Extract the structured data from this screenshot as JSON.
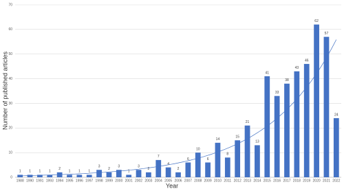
{
  "chart_data": {
    "type": "bar",
    "x_label": "Year",
    "y_label": "Number of published articles",
    "categories": [
      "1988",
      "1990",
      "1991",
      "1993",
      "1994",
      "1995",
      "1996",
      "1997",
      "1998",
      "1999",
      "2000",
      "2001",
      "2002",
      "2003",
      "2004",
      "2005",
      "2006",
      "2007",
      "2008",
      "2009",
      "2010",
      "2011",
      "2012",
      "2013",
      "2014",
      "2015",
      "2016",
      "2017",
      "2018",
      "2019",
      "2020",
      "2021",
      "2022"
    ],
    "values": [
      1,
      1,
      1,
      1,
      2,
      1,
      1,
      1,
      3,
      2,
      3,
      1,
      3,
      2,
      7,
      4,
      2,
      6,
      10,
      6,
      14,
      8,
      15,
      21,
      13,
      41,
      33,
      38,
      43,
      46,
      62,
      57,
      24
    ],
    "color": "#4472c4",
    "ylim": [
      0,
      70
    ],
    "yticks": [
      0,
      10,
      20,
      30,
      40,
      50,
      60,
      70
    ],
    "grid": true,
    "trendline": "exponential"
  }
}
